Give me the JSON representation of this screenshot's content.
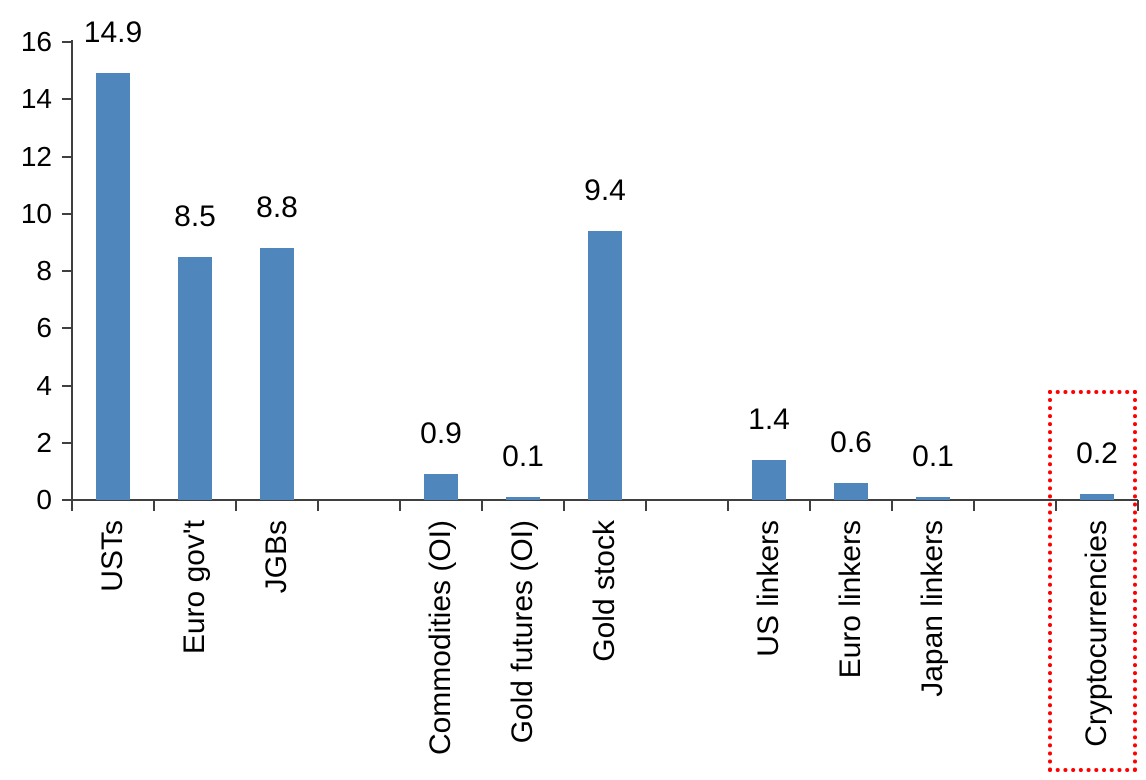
{
  "chart_data": {
    "type": "bar",
    "title": "",
    "xlabel": "",
    "ylabel": "",
    "categories": [
      "USTs",
      "Euro gov't",
      "JGBs",
      "Commodities (OI)",
      "Gold futures (OI)",
      "Gold stock",
      "US linkers",
      "Euro linkers",
      "Japan linkers",
      "Cryptocurrencies"
    ],
    "values": [
      14.9,
      8.5,
      8.8,
      0.9,
      0.1,
      9.4,
      1.4,
      0.6,
      0.1,
      0.2
    ],
    "value_labels": [
      "14.9",
      "8.5",
      "8.8",
      "0.9",
      "0.1",
      "9.4",
      "1.4",
      "0.6",
      "0.1",
      "0.2"
    ],
    "slots": [
      0,
      1,
      2,
      4,
      5,
      6,
      8,
      9,
      10,
      12
    ],
    "total_slots": 13,
    "ylim": [
      0,
      16
    ],
    "ytick_step": 2,
    "ytick_labels": [
      "0",
      "2",
      "4",
      "6",
      "8",
      "10",
      "12",
      "14",
      "16"
    ],
    "grid": false,
    "legend": false,
    "bar_color": "#4f86bc",
    "axis_color": "#3f3f3f",
    "text_color": "#000000",
    "highlight": {
      "category": "Cryptocurrencies",
      "box_color": "#ff0000",
      "box_style": "dotted"
    }
  }
}
